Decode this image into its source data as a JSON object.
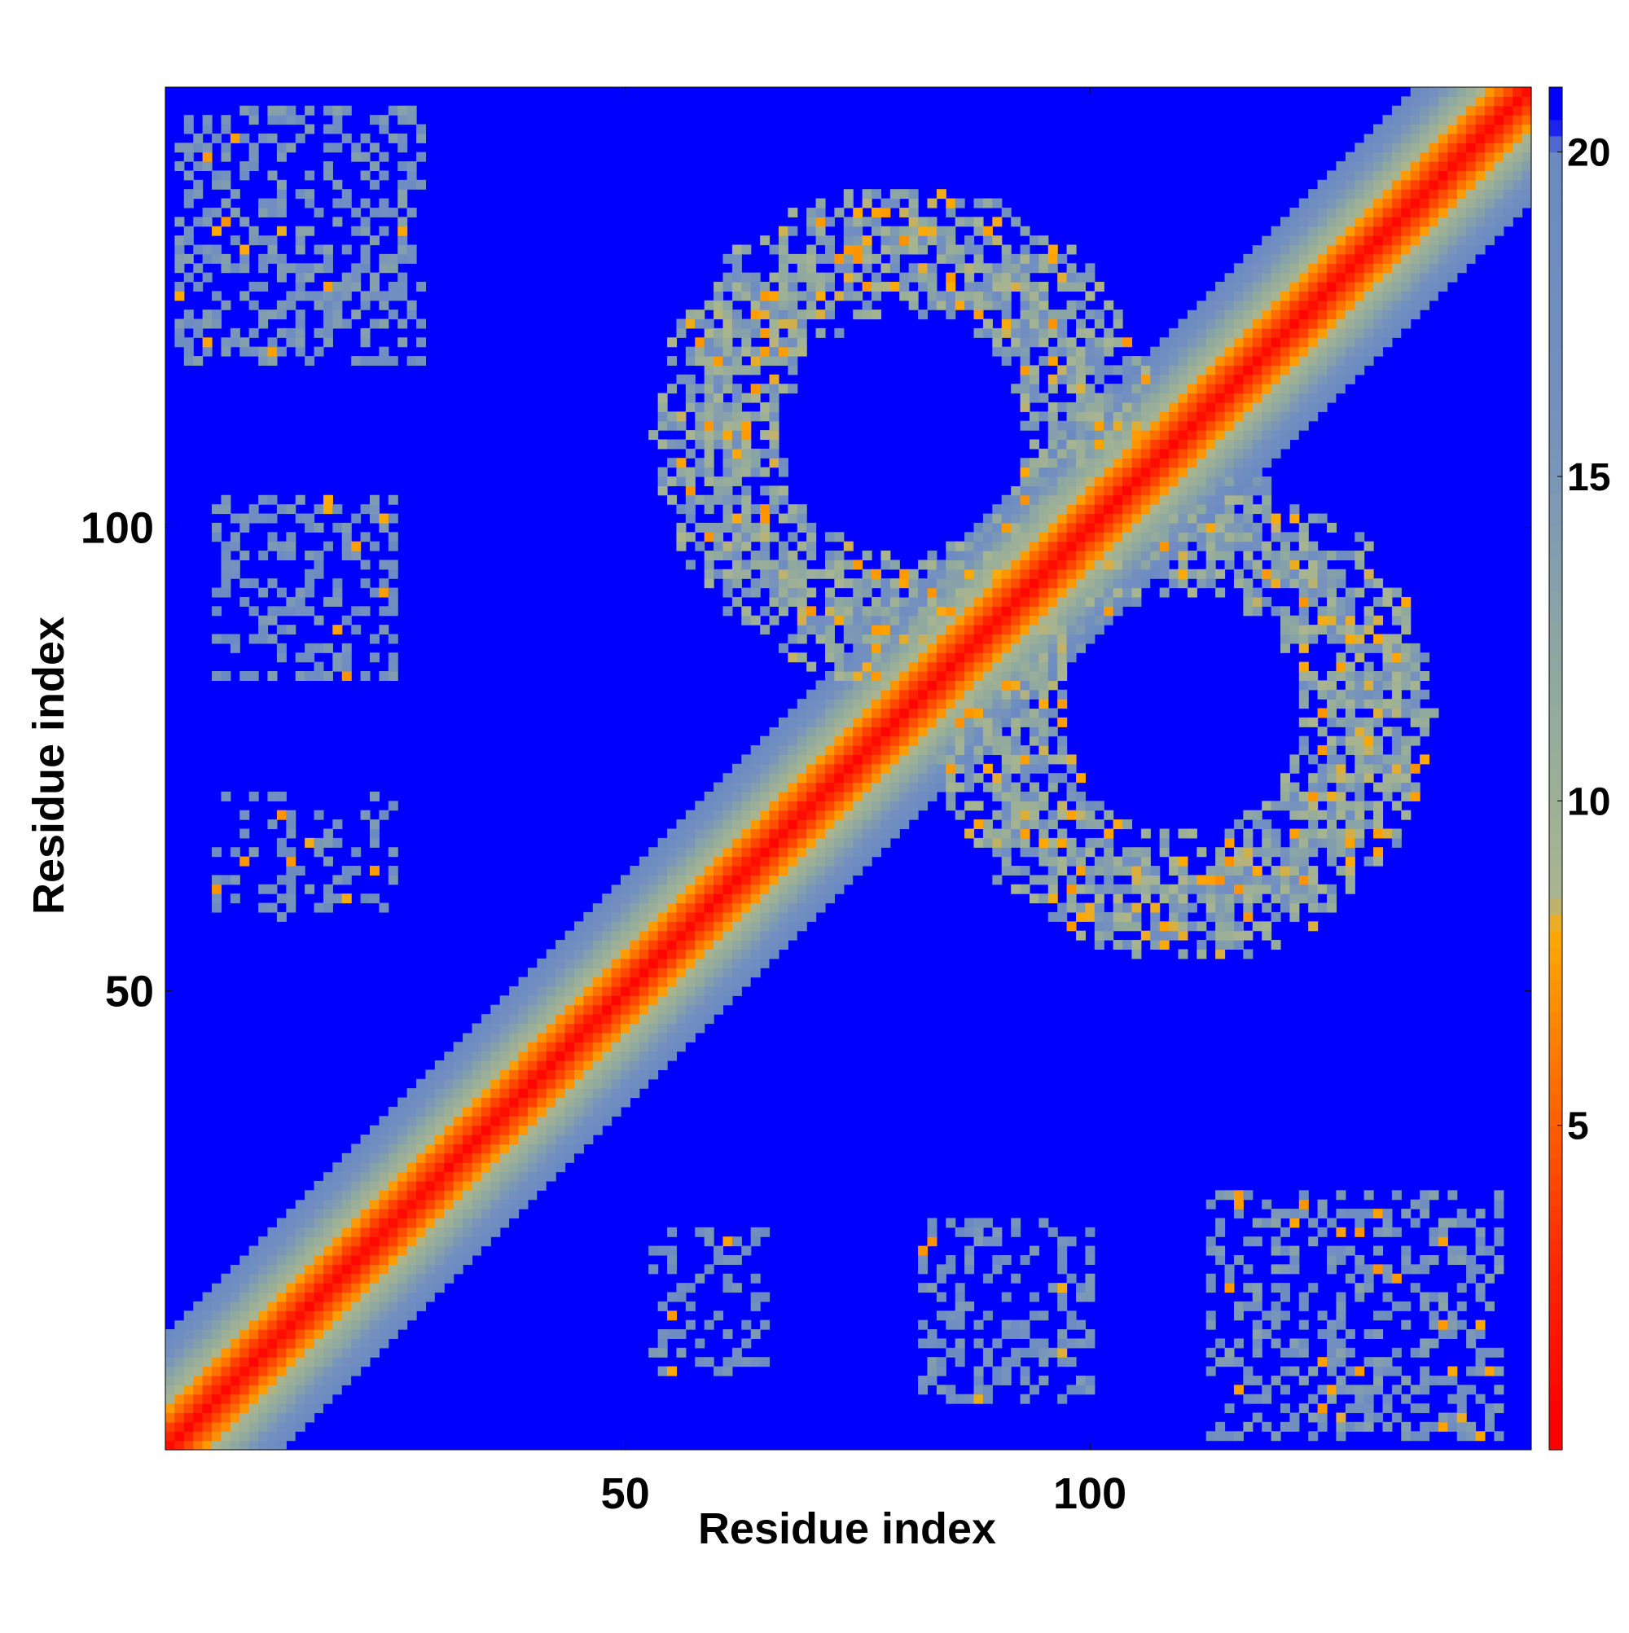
{
  "chart_data": {
    "type": "heatmap",
    "title": "",
    "xlabel": "Residue index",
    "ylabel": "Residue index",
    "n_residues": 147,
    "xlim": [
      1,
      147
    ],
    "ylim": [
      1,
      147
    ],
    "x_ticks": [
      50,
      100
    ],
    "y_ticks": [
      50,
      100
    ],
    "colorbar": {
      "min": 0,
      "max": 21,
      "ticks": [
        5,
        10,
        15,
        20
      ],
      "stops": [
        {
          "value": 0.5,
          "color": "#ff0000"
        },
        {
          "value": 3.0,
          "color": "#ff2a00"
        },
        {
          "value": 5.5,
          "color": "#ff6a00"
        },
        {
          "value": 7.0,
          "color": "#ff9100"
        },
        {
          "value": 8.0,
          "color": "#ffaa00"
        },
        {
          "value": 8.5,
          "color": "#a9b58f"
        },
        {
          "value": 12.0,
          "color": "#8fa9a0"
        },
        {
          "value": 16.0,
          "color": "#7390c0"
        },
        {
          "value": 20.0,
          "color": "#6a8ac2"
        },
        {
          "value": 20.5,
          "color": "#0000ff"
        }
      ],
      "background_color": "#0000ff"
    },
    "contact_regions": [
      {
        "x_range": [
          2,
          28
        ],
        "y_range": [
          118,
          145
        ],
        "typical_distance": 16,
        "density": 0.4
      },
      {
        "x_range": [
          6,
          25
        ],
        "y_range": [
          84,
          103
        ],
        "typical_distance": 17,
        "density": 0.4
      },
      {
        "x_range": [
          6,
          25
        ],
        "y_range": [
          58,
          71
        ],
        "typical_distance": 17,
        "density": 0.3
      },
      {
        "x_range": [
          53,
          65
        ],
        "y_range": [
          9,
          24
        ],
        "typical_distance": 17,
        "density": 0.3
      },
      {
        "x_range": [
          82,
          100
        ],
        "y_range": [
          6,
          25
        ],
        "typical_distance": 17,
        "density": 0.4
      },
      {
        "x_range": [
          113,
          144
        ],
        "y_range": [
          2,
          28
        ],
        "typical_distance": 16,
        "density": 0.4
      }
    ],
    "rings": [
      {
        "center": [
          80,
          110
        ],
        "radius": 20,
        "width": 7,
        "typical_distance": 13
      },
      {
        "center": [
          110,
          80
        ],
        "radius": 20,
        "width": 7,
        "typical_distance": 13
      }
    ],
    "diagonal_band": {
      "core_distance": 1,
      "half_width": 13
    }
  }
}
